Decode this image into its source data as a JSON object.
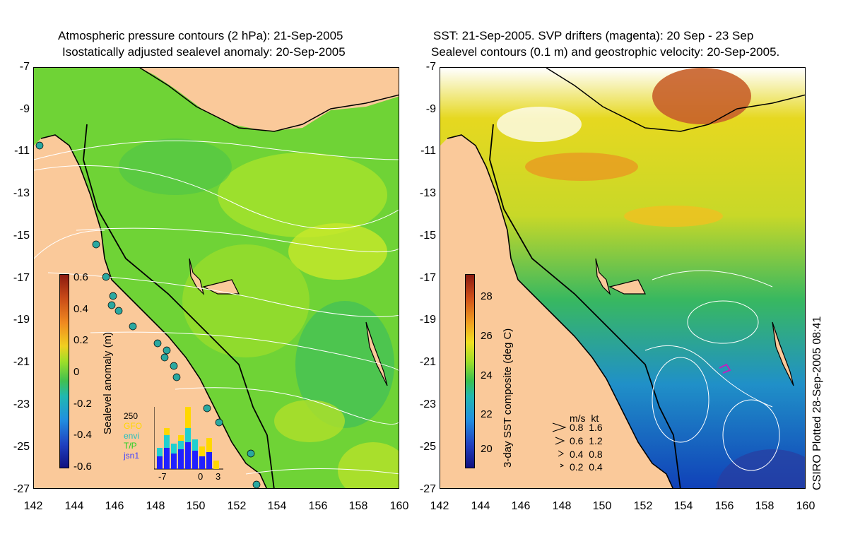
{
  "left": {
    "title1": "Atmospheric pressure contours (2 hPa): 21-Sep-2005",
    "title2": "Isostatically adjusted sealevel anomaly: 20-Sep-2005",
    "colorbar_label": "Sealevel anomaly (m)",
    "colorbar_ticks": [
      "0.6",
      "0.4",
      "0.2",
      "0",
      "-0.2",
      "-0.4",
      "-0.6"
    ],
    "hist_count": "250",
    "hist_legend": [
      {
        "label": "GFO",
        "color": "#ffd700"
      },
      {
        "label": "envi",
        "color": "#20c0c0"
      },
      {
        "label": "T/P",
        "color": "#20d020"
      },
      {
        "label": "jsn1",
        "color": "#4040ff"
      }
    ],
    "hist_xticks": [
      "-7",
      "0",
      "3"
    ]
  },
  "right": {
    "title1": "SST: 21-Sep-2005. SVP drifters (magenta): 20 Sep - 23 Sep",
    "title2": "Sealevel contours (0.1 m) and geostrophic velocity: 20-Sep-2005.",
    "colorbar_label": "3-day SST composite (deg C)",
    "colorbar_ticks": [
      "28",
      "26",
      "24",
      "22",
      "20"
    ],
    "velocity_legend": [
      "m/s  kt",
      "0.8  1.6",
      "0.6  1.2",
      "0.4  0.8",
      "0.2  0.4"
    ]
  },
  "axes": {
    "lat_ticks": [
      "-7",
      "-9",
      "-11",
      "-13",
      "-15",
      "-17",
      "-19",
      "-21",
      "-23",
      "-25",
      "-27"
    ],
    "lon_ticks": [
      "142",
      "144",
      "146",
      "148",
      "150",
      "152",
      "154",
      "156",
      "158",
      "160"
    ]
  },
  "credit": "CSIRO Plotted 28-Sep-2005 08:41",
  "colors": {
    "land": "#fac99a",
    "ocean_main": "#5ad038",
    "ocean_light": "#9ee02a",
    "sst_warm": "#f0c020",
    "sst_cool": "#1060c0"
  }
}
